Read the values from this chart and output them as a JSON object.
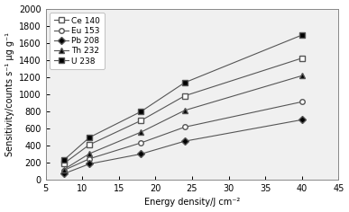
{
  "x": [
    7.5,
    11,
    18,
    24,
    40
  ],
  "series": {
    "Ce 140": [
      190,
      410,
      690,
      980,
      1420
    ],
    "Eu 153": [
      110,
      245,
      430,
      615,
      910
    ],
    "Pb 208": [
      70,
      185,
      300,
      450,
      700
    ],
    "Th 232": [
      120,
      305,
      555,
      810,
      1215
    ],
    "U 238": [
      230,
      495,
      795,
      1135,
      1690
    ]
  },
  "markers": {
    "Ce 140": "s",
    "Eu 153": "o",
    "Pb 208": "D",
    "Th 232": "^",
    "U 238": "s"
  },
  "marker_fill": {
    "Ce 140": "white",
    "Eu 153": "white",
    "Pb 208": "black",
    "Th 232": "black",
    "U 238": "black"
  },
  "line_color": "#555555",
  "xlabel": "Energy density/J cm⁻²",
  "ylabel": "Sensitivity/counts s⁻¹ µg g⁻¹",
  "xlim": [
    5,
    45
  ],
  "ylim": [
    0,
    2000
  ],
  "xticks": [
    5,
    10,
    15,
    20,
    25,
    30,
    35,
    40,
    45
  ],
  "yticks": [
    0,
    200,
    400,
    600,
    800,
    1000,
    1200,
    1400,
    1600,
    1800,
    2000
  ],
  "legend_order": [
    "Ce 140",
    "Eu 153",
    "Pb 208",
    "Th 232",
    "U 238"
  ],
  "bg_color": "#f0f0f0",
  "fig_color": "#ffffff"
}
